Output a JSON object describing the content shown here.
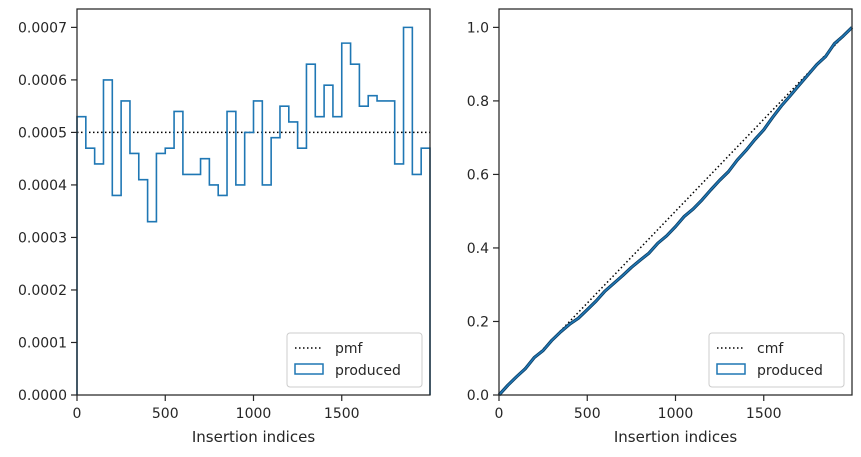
{
  "chart_data": [
    {
      "type": "step",
      "xlabel": "Insertion indices",
      "ylabel": "",
      "title": "",
      "xlim": [
        0,
        2000
      ],
      "ylim": [
        0,
        0.000735
      ],
      "xticks": [
        0,
        500,
        1000,
        1500
      ],
      "xtick_labels": [
        "0",
        "500",
        "1000",
        "1500"
      ],
      "yticks": [
        0,
        0.0001,
        0.0002,
        0.0003,
        0.0004,
        0.0005,
        0.0006,
        0.0007
      ],
      "ytick_labels": [
        "0.0000",
        "0.0001",
        "0.0002",
        "0.0003",
        "0.0004",
        "0.0005",
        "0.0006",
        "0.0007"
      ],
      "grid": false,
      "legend_position": "lower right",
      "legend": [
        {
          "label": "pmf",
          "style": "dotted-line"
        },
        {
          "label": "produced",
          "style": "outlined-box"
        }
      ],
      "reference_line": {
        "name": "pmf",
        "y": 0.0005
      },
      "histogram": {
        "name": "produced",
        "bin_edges": [
          0,
          50,
          100,
          150,
          200,
          250,
          300,
          350,
          400,
          450,
          500,
          550,
          600,
          650,
          700,
          750,
          800,
          850,
          900,
          950,
          1000,
          1050,
          1100,
          1150,
          1200,
          1250,
          1300,
          1350,
          1400,
          1450,
          1500,
          1550,
          1600,
          1650,
          1700,
          1750,
          1800,
          1850,
          1900,
          1950,
          2000
        ],
        "values": [
          0.00053,
          0.00047,
          0.00044,
          0.0006,
          0.00038,
          0.00056,
          0.00046,
          0.00041,
          0.00033,
          0.00046,
          0.00047,
          0.00054,
          0.00042,
          0.00042,
          0.00045,
          0.0004,
          0.00038,
          0.00054,
          0.0004,
          0.0005,
          0.00056,
          0.0004,
          0.00049,
          0.00055,
          0.00052,
          0.00047,
          0.00063,
          0.00053,
          0.00059,
          0.00053,
          0.00067,
          0.00063,
          0.00055,
          0.00057,
          0.00056,
          0.00056,
          0.00044,
          0.0007,
          0.00042,
          0.00047
        ]
      },
      "colors": {
        "produced": "#1f77b4",
        "reference": "#000000"
      }
    },
    {
      "type": "line",
      "xlabel": "Insertion indices",
      "ylabel": "",
      "title": "",
      "xlim": [
        0,
        2000
      ],
      "ylim": [
        0,
        1.05
      ],
      "xticks": [
        0,
        500,
        1000,
        1500
      ],
      "xtick_labels": [
        "0",
        "500",
        "1000",
        "1500"
      ],
      "yticks": [
        0,
        0.2,
        0.4,
        0.6,
        0.8,
        1.0
      ],
      "ytick_labels": [
        "0.0",
        "0.2",
        "0.4",
        "0.6",
        "0.8",
        "1.0"
      ],
      "grid": false,
      "legend_position": "lower right",
      "legend": [
        {
          "label": "cmf",
          "style": "dotted-line"
        },
        {
          "label": "produced",
          "style": "outlined-box"
        }
      ],
      "reference_line": {
        "name": "cmf",
        "x": [
          0,
          2000
        ],
        "y": [
          0,
          1.0
        ]
      },
      "series": [
        {
          "name": "produced",
          "x": [
            0,
            50,
            100,
            150,
            200,
            250,
            300,
            350,
            400,
            450,
            500,
            550,
            600,
            650,
            700,
            750,
            800,
            850,
            900,
            950,
            1000,
            1050,
            1100,
            1150,
            1200,
            1250,
            1300,
            1350,
            1400,
            1450,
            1500,
            1550,
            1600,
            1650,
            1700,
            1750,
            1800,
            1850,
            1900,
            1950,
            2000
          ],
          "y": [
            0,
            0.0265,
            0.05,
            0.072,
            0.102,
            0.121,
            0.149,
            0.172,
            0.1925,
            0.209,
            0.232,
            0.2555,
            0.2825,
            0.3035,
            0.3245,
            0.347,
            0.367,
            0.386,
            0.413,
            0.433,
            0.458,
            0.486,
            0.506,
            0.5305,
            0.558,
            0.584,
            0.6075,
            0.639,
            0.6655,
            0.695,
            0.7215,
            0.755,
            0.7865,
            0.814,
            0.8425,
            0.8705,
            0.8985,
            0.9205,
            0.9555,
            0.9765,
            1.0
          ]
        }
      ],
      "colors": {
        "produced": "#1f77b4",
        "reference": "#000000"
      }
    }
  ]
}
